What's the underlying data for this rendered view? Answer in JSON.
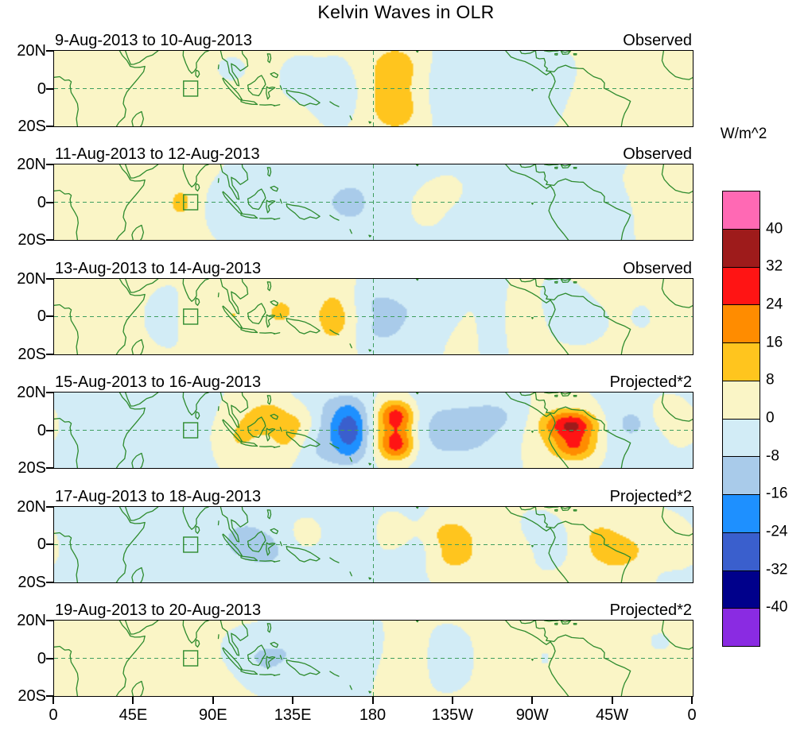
{
  "chart_data": {
    "type": "heatmap",
    "title": "Kelvin Waves in OLR",
    "units": "W/m^2",
    "x_axis": {
      "tick_labels": [
        "0",
        "45E",
        "90E",
        "135E",
        "180",
        "135W",
        "90W",
        "45W",
        "0"
      ],
      "tick_lons": [
        0,
        45,
        90,
        135,
        180,
        225,
        270,
        315,
        360
      ]
    },
    "y_axis": {
      "tick_labels": [
        "20N",
        "0",
        "20S"
      ],
      "tick_lats": [
        20,
        0,
        -20
      ]
    },
    "colorbar": {
      "levels": [
        -40,
        -32,
        -24,
        -16,
        -8,
        0,
        8,
        16,
        24,
        32,
        40
      ],
      "label_values": [
        "40",
        "32",
        "24",
        "16",
        "8",
        "0",
        "-8",
        "-16",
        "-24",
        "-32",
        "-40"
      ],
      "colors_bottom_to_top": [
        "#8A2BE2",
        "#00008B",
        "#3A5FCD",
        "#1E90FF",
        "#A9CBEA",
        "#D2ECF6",
        "#FAF5C6",
        "#FFC51E",
        "#FF8C00",
        "#FF1414",
        "#9E1B1B",
        "#FF69B4"
      ]
    },
    "map_style": {
      "coast_color": "#2e8b2e",
      "dash_color": "#3f9e5f",
      "frame_color": "#000000"
    },
    "reference_lines": {
      "equator_lat": 0,
      "dateline_lon": 180
    },
    "index_box": {
      "lon_min": 73,
      "lon_max": 81,
      "lat_min": -4,
      "lat_max": 4
    },
    "panels": [
      {
        "title": "9-Aug-2013 to 10-Aug-2013",
        "label": "Observed",
        "blobs": [
          [
            30,
            0,
            3.5,
            45,
            30
          ],
          [
            120,
            0,
            2,
            30,
            25
          ],
          [
            330,
            5,
            3,
            35,
            25
          ],
          [
            78,
            0,
            5,
            6,
            8
          ],
          [
            193,
            0,
            13,
            13,
            16
          ],
          [
            193,
            13,
            5,
            9,
            6
          ],
          [
            193,
            -13,
            5,
            9,
            6
          ],
          [
            160,
            -2,
            -6,
            10,
            10
          ],
          [
            137,
            5,
            -5,
            8,
            8
          ],
          [
            222,
            0,
            -6,
            20,
            14
          ],
          [
            265,
            -5,
            -5,
            15,
            10
          ],
          [
            282,
            10,
            -4,
            10,
            8
          ],
          [
            350,
            0,
            3,
            15,
            15
          ],
          [
            100,
            10,
            -4,
            8,
            6
          ]
        ]
      },
      {
        "title": "11-Aug-2013 to 12-Aug-2013",
        "label": "Observed",
        "blobs": [
          [
            25,
            3,
            3,
            40,
            25
          ],
          [
            60,
            -5,
            2,
            20,
            15
          ],
          [
            180,
            0,
            -3,
            50,
            25
          ],
          [
            300,
            0,
            -2,
            40,
            25
          ],
          [
            72,
            0,
            7,
            6,
            7
          ],
          [
            95,
            -3,
            -4,
            8,
            8
          ],
          [
            140,
            0,
            -5,
            15,
            12
          ],
          [
            168,
            0,
            -7,
            8,
            8
          ],
          [
            210,
            -3,
            5,
            8,
            8
          ],
          [
            222,
            6,
            5,
            8,
            6
          ],
          [
            250,
            0,
            -4,
            12,
            10
          ],
          [
            310,
            -5,
            -6,
            10,
            8
          ],
          [
            335,
            0,
            3,
            15,
            12
          ],
          [
            355,
            8,
            4,
            8,
            6
          ]
        ]
      },
      {
        "title": "13-Aug-2013 to 14-Aug-2013",
        "label": "Observed",
        "blobs": [
          [
            25,
            0,
            3,
            40,
            28
          ],
          [
            320,
            0,
            2,
            30,
            20
          ],
          [
            60,
            0,
            -3,
            15,
            15
          ],
          [
            80,
            0,
            4,
            6,
            8
          ],
          [
            100,
            2,
            7,
            7,
            8
          ],
          [
            128,
            3,
            9,
            8,
            8
          ],
          [
            112,
            -5,
            4,
            7,
            6
          ],
          [
            158,
            0,
            12,
            9,
            12
          ],
          [
            180,
            8,
            -7,
            10,
            7
          ],
          [
            182,
            -8,
            -7,
            10,
            7
          ],
          [
            196,
            0,
            -5,
            10,
            12
          ],
          [
            215,
            5,
            -5,
            12,
            8
          ],
          [
            235,
            0,
            3,
            10,
            10
          ],
          [
            252,
            0,
            -5,
            12,
            10
          ],
          [
            264,
            0,
            9,
            8,
            9
          ],
          [
            286,
            5,
            -5,
            10,
            8
          ],
          [
            300,
            -3,
            -4,
            10,
            8
          ],
          [
            335,
            0,
            -4,
            12,
            10
          ],
          [
            352,
            0,
            3,
            10,
            8
          ]
        ]
      },
      {
        "title": "15-Aug-2013 to 16-Aug-2013",
        "label": "Projected*2",
        "blobs": [
          [
            20,
            0,
            -3,
            30,
            25
          ],
          [
            60,
            0,
            -5,
            25,
            20
          ],
          [
            90,
            0,
            2,
            15,
            20
          ],
          [
            105,
            -4,
            8,
            8,
            7
          ],
          [
            112,
            6,
            6,
            7,
            6
          ],
          [
            122,
            8,
            10,
            7,
            6
          ],
          [
            130,
            -6,
            8,
            8,
            7
          ],
          [
            140,
            4,
            12,
            8,
            7
          ],
          [
            150,
            0,
            -12,
            10,
            14
          ],
          [
            167,
            0,
            -24,
            7,
            7
          ],
          [
            167,
            12,
            -10,
            8,
            6
          ],
          [
            167,
            -12,
            -10,
            8,
            6
          ],
          [
            193,
            8,
            24,
            7,
            5.5
          ],
          [
            193,
            -8,
            24,
            7,
            5.5
          ],
          [
            193,
            0,
            10,
            8,
            8
          ],
          [
            215,
            0,
            -9,
            14,
            14
          ],
          [
            238,
            0,
            -8,
            12,
            12
          ],
          [
            252,
            8,
            -6,
            10,
            7
          ],
          [
            278,
            0,
            6,
            8,
            10
          ],
          [
            291,
            3,
            28,
            9,
            5
          ],
          [
            293,
            -9,
            20,
            8,
            5
          ],
          [
            302,
            0,
            8,
            10,
            8
          ],
          [
            315,
            0,
            -6,
            10,
            10
          ],
          [
            330,
            5,
            -7,
            10,
            8
          ],
          [
            345,
            8,
            9,
            8,
            6
          ],
          [
            355,
            0,
            4,
            8,
            8
          ]
        ]
      },
      {
        "title": "17-Aug-2013 to 18-Aug-2013",
        "label": "Projected*2",
        "blobs": [
          [
            25,
            0,
            -3,
            35,
            25
          ],
          [
            90,
            0,
            -4,
            30,
            22
          ],
          [
            300,
            0,
            3,
            30,
            22
          ],
          [
            60,
            5,
            3,
            10,
            8
          ],
          [
            108,
            3,
            -6,
            10,
            8
          ],
          [
            122,
            -4,
            -6,
            10,
            8
          ],
          [
            143,
            5,
            5,
            8,
            6
          ],
          [
            160,
            0,
            -4,
            12,
            12
          ],
          [
            195,
            5,
            4,
            8,
            6
          ],
          [
            205,
            0,
            -4,
            10,
            10
          ],
          [
            222,
            6,
            11,
            9,
            6
          ],
          [
            224,
            -7,
            9,
            9,
            6
          ],
          [
            240,
            0,
            4,
            10,
            10
          ],
          [
            258,
            0,
            5,
            8,
            8
          ],
          [
            270,
            8,
            -4,
            8,
            6
          ],
          [
            280,
            0,
            -5,
            10,
            10
          ],
          [
            308,
            5,
            6,
            8,
            6
          ],
          [
            318,
            -4,
            12,
            10,
            6
          ],
          [
            345,
            5,
            8,
            9,
            6
          ],
          [
            355,
            -5,
            3,
            8,
            6
          ]
        ]
      },
      {
        "title": "19-Aug-2013 to 20-Aug-2013",
        "label": "Projected*2",
        "blobs": [
          [
            45,
            0,
            3,
            45,
            28
          ],
          [
            290,
            0,
            2.5,
            45,
            28
          ],
          [
            105,
            5,
            -4,
            8,
            7
          ],
          [
            118,
            -2,
            -7,
            9,
            8
          ],
          [
            130,
            4,
            -5,
            10,
            8
          ],
          [
            150,
            0,
            -3,
            15,
            15
          ],
          [
            170,
            5,
            -4,
            10,
            8
          ],
          [
            200,
            0,
            3,
            12,
            10
          ],
          [
            222,
            0,
            -4,
            12,
            10
          ],
          [
            255,
            0,
            4,
            10,
            8
          ],
          [
            275,
            0,
            -3,
            10,
            10
          ],
          [
            320,
            0,
            3,
            15,
            12
          ],
          [
            340,
            8,
            -4,
            8,
            6
          ]
        ]
      }
    ]
  }
}
